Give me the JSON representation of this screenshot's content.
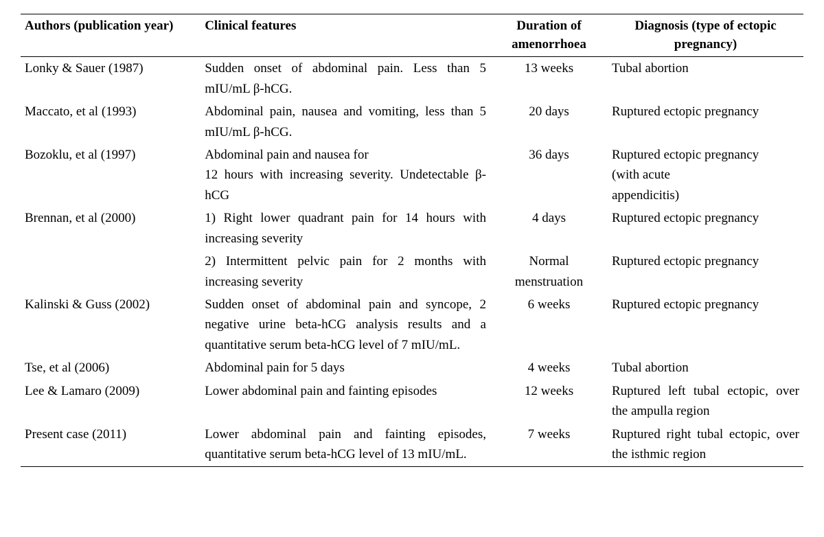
{
  "table": {
    "headers": {
      "authors": "Authors (publication year)",
      "features": "Clinical features",
      "duration_l1": "Duration of",
      "duration_l2": "amenorrhoea",
      "diagnosis_l1": "Diagnosis (type of ectopic",
      "diagnosis_l2": "pregnancy)"
    },
    "rows": [
      {
        "authors": "Lonky & Sauer (1987)",
        "features": "Sudden onset of abdominal pain. Less than 5 mIU/mL β-hCG.",
        "duration": "13 weeks",
        "diagnosis": "Tubal abortion"
      },
      {
        "authors": "Maccato, et al (1993)",
        "features": "Abdominal pain, nausea and vomiting, less than 5 mIU/mL β-hCG.",
        "duration": "20 days",
        "diagnosis": "Ruptured ectopic pregnancy"
      },
      {
        "authors": "Bozoklu, et al (1997)",
        "features_l1": "Abdominal pain and nausea for",
        "features_l2": "12 hours with increasing severity. Undetectable β-hCG",
        "duration": "36 days",
        "diagnosis_l1": "Ruptured ectopic pregnancy",
        "diagnosis_l2": "(with acute",
        "diagnosis_l3": "appendicitis)"
      },
      {
        "authors": "Brennan, et al (2000)",
        "features1": "1) Right lower quadrant pain for 14 hours with increasing severity",
        "duration1": "4 days",
        "diagnosis1": "Ruptured ectopic pregnancy",
        "features2": "2) Intermittent pelvic pain for 2 months with increasing severity",
        "duration2_l1": "Normal",
        "duration2_l2": "menstruation",
        "diagnosis2": "Ruptured ectopic pregnancy"
      },
      {
        "authors": "Kalinski & Guss (2002)",
        "features": "Sudden onset of abdominal pain and syncope, 2 negative urine beta-hCG analysis results and a quantitative serum beta-hCG level of 7 mIU/mL.",
        "duration": "6 weeks",
        "diagnosis": "Ruptured ectopic pregnancy"
      },
      {
        "authors": "Tse, et al (2006)",
        "features": "Abdominal pain for 5 days",
        "duration": "4 weeks",
        "diagnosis": "Tubal abortion"
      },
      {
        "authors": "Lee & Lamaro (2009)",
        "features": "Lower abdominal pain and fainting episodes",
        "duration": "12 weeks",
        "diagnosis": "Ruptured left tubal ectopic, over the ampulla region"
      },
      {
        "authors": "Present case (2011)",
        "features": "Lower abdominal pain and fainting episodes, quantitative serum beta-hCG level of 13 mIU/mL.",
        "duration": "7 weeks",
        "diagnosis": "Ruptured right tubal ectopic, over the isthmic region"
      }
    ]
  }
}
